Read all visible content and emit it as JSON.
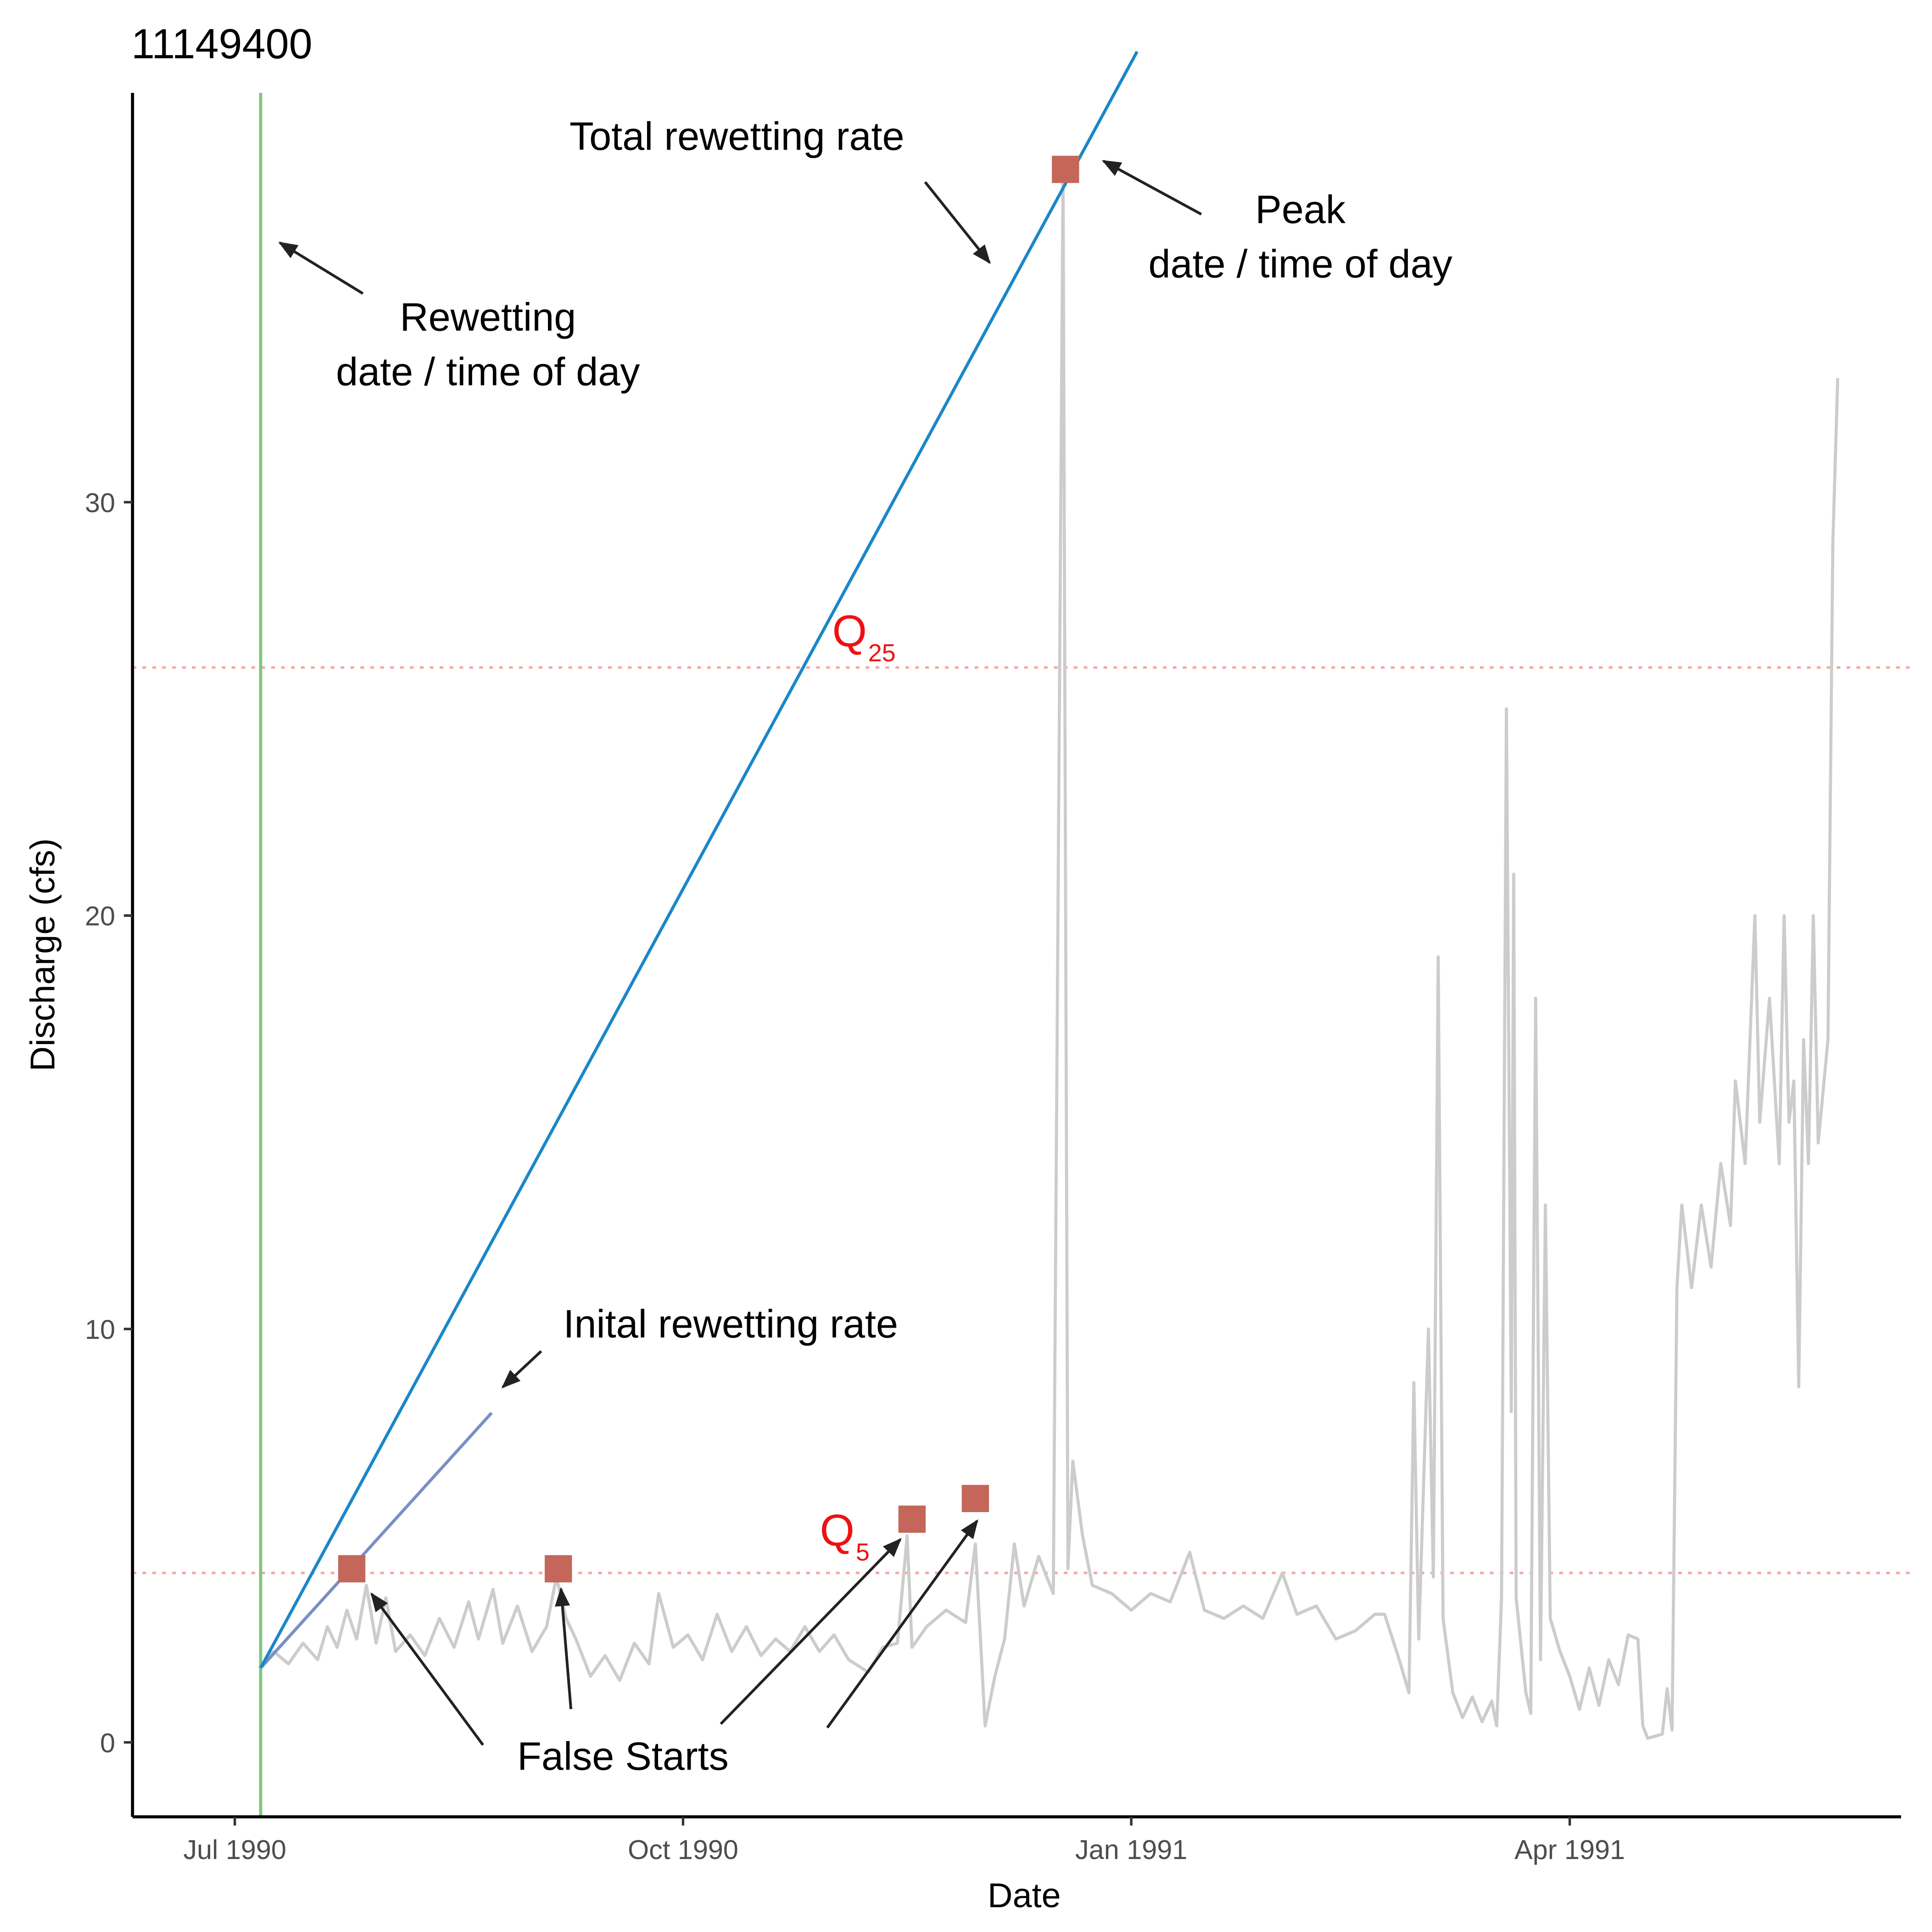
{
  "chart_data": {
    "type": "line",
    "title": "11149400",
    "x_label": "Date",
    "y_label": "Discharge (cfs)",
    "xlim": [
      -21,
      342
    ],
    "ylim": [
      -1.8,
      39.9
    ],
    "xticks": [
      {
        "value": 0,
        "label": "Jul 1990"
      },
      {
        "value": 92,
        "label": "Oct 1990"
      },
      {
        "value": 184,
        "label": "Jan 1991"
      },
      {
        "value": 274,
        "label": "Apr 1991"
      }
    ],
    "yticks": [
      0,
      10,
      20,
      30
    ],
    "grid": false,
    "color": "#cccccc",
    "x": [
      5,
      8,
      11,
      14,
      17,
      19,
      21,
      23,
      25,
      27,
      29,
      31,
      33,
      36,
      39,
      42,
      45,
      48,
      50,
      53,
      55,
      58,
      61,
      64,
      66,
      68,
      70,
      73,
      76,
      79,
      82,
      85,
      87,
      90,
      93,
      96,
      99,
      102,
      105,
      108,
      111,
      114,
      117,
      120,
      123,
      126,
      130,
      133,
      136,
      138,
      139,
      142,
      146,
      150,
      152,
      153,
      154,
      156,
      158,
      160,
      162,
      165,
      168,
      170,
      171,
      172,
      174,
      176,
      180,
      184,
      188,
      192,
      196,
      199,
      203,
      207,
      211,
      215,
      218,
      222,
      226,
      230,
      234,
      236,
      239,
      241,
      242,
      243,
      245,
      246,
      247,
      248,
      250,
      252,
      254,
      256,
      258,
      259,
      260,
      261,
      262,
      262.5,
      263,
      265,
      266,
      267,
      268,
      269,
      270,
      272,
      274,
      276,
      278,
      280,
      282,
      284,
      286,
      288,
      289,
      290,
      293,
      294,
      295,
      296,
      297,
      299,
      301,
      303,
      305,
      307,
      308,
      310,
      312,
      313,
      315,
      317,
      318,
      319,
      320,
      321,
      322,
      323,
      324,
      325,
      327,
      328,
      329
    ],
    "values": [
      1.8,
      2.2,
      1.9,
      2.4,
      2.0,
      2.8,
      2.3,
      3.2,
      2.5,
      3.8,
      2.4,
      3.5,
      2.2,
      2.6,
      2.1,
      3.0,
      2.3,
      3.4,
      2.5,
      3.7,
      2.4,
      3.3,
      2.2,
      2.8,
      4.0,
      3.0,
      2.5,
      1.6,
      2.1,
      1.5,
      2.4,
      1.9,
      3.6,
      2.3,
      2.6,
      2.0,
      3.1,
      2.2,
      2.8,
      2.1,
      2.5,
      2.2,
      2.8,
      2.2,
      2.6,
      2.0,
      1.7,
      2.3,
      2.4,
      5.0,
      2.3,
      2.8,
      3.2,
      2.9,
      4.8,
      2.6,
      0.4,
      1.6,
      2.5,
      4.8,
      3.3,
      4.5,
      3.6,
      38.0,
      4.2,
      6.8,
      5.0,
      3.8,
      3.6,
      3.2,
      3.6,
      3.4,
      4.6,
      3.2,
      3.0,
      3.3,
      3.0,
      4.1,
      3.1,
      3.3,
      2.5,
      2.7,
      3.1,
      3.1,
      2.0,
      1.2,
      8.7,
      2.5,
      10.0,
      4.0,
      19.0,
      3.0,
      1.2,
      0.6,
      1.1,
      0.5,
      1.0,
      0.4,
      3.5,
      25.0,
      8.0,
      21.0,
      3.5,
      1.2,
      0.7,
      18.0,
      2.0,
      13.0,
      3.0,
      2.2,
      1.6,
      0.8,
      1.8,
      0.9,
      2.0,
      1.4,
      2.6,
      2.5,
      0.4,
      0.1,
      0.2,
      1.3,
      0.3,
      11.0,
      13.0,
      11.0,
      13.0,
      11.5,
      14.0,
      12.5,
      16.0,
      14.0,
      20.0,
      15.0,
      18.0,
      14.0,
      20.0,
      15.0,
      16.0,
      8.6,
      17.0,
      14.0,
      20.0,
      14.5,
      17.0,
      29.0,
      33.0
    ],
    "rewetting_date": {
      "x": 5.3,
      "color": "#7cc77c"
    },
    "total_rate": {
      "x": [
        5.3,
        185.2
      ],
      "values": [
        1.8,
        40.9
      ],
      "color": "#1a87c8"
    },
    "initial_rate": {
      "x": [
        5.3,
        52.7
      ],
      "values": [
        1.8,
        7.97
      ],
      "color": "#7b8fc4"
    },
    "thresholds": {
      "values": [
        26,
        4.1
      ],
      "color": "#f4a9a4"
    },
    "points": {
      "x": [
        24,
        66.4,
        139,
        152,
        170.5
      ],
      "values": [
        4.2,
        4.2,
        5.4,
        5.9,
        38.05
      ],
      "color": "#c4665a"
    },
    "annotations": [
      {
        "lines": [
          "Rewetting",
          "date / time of day"
        ]
      },
      {
        "lines": [
          "Total rewetting rate"
        ]
      },
      {
        "lines": [
          "Peak",
          "date / time of day"
        ]
      },
      {
        "lines": [
          "Inital rewetting rate"
        ]
      },
      {
        "lines": [
          "False Starts"
        ]
      }
    ],
    "threshold_labels": [
      {
        "text": "Q",
        "sub": "25"
      },
      {
        "text": "Q",
        "sub": "5"
      }
    ],
    "threshold_label_color": "#ee1111"
  }
}
